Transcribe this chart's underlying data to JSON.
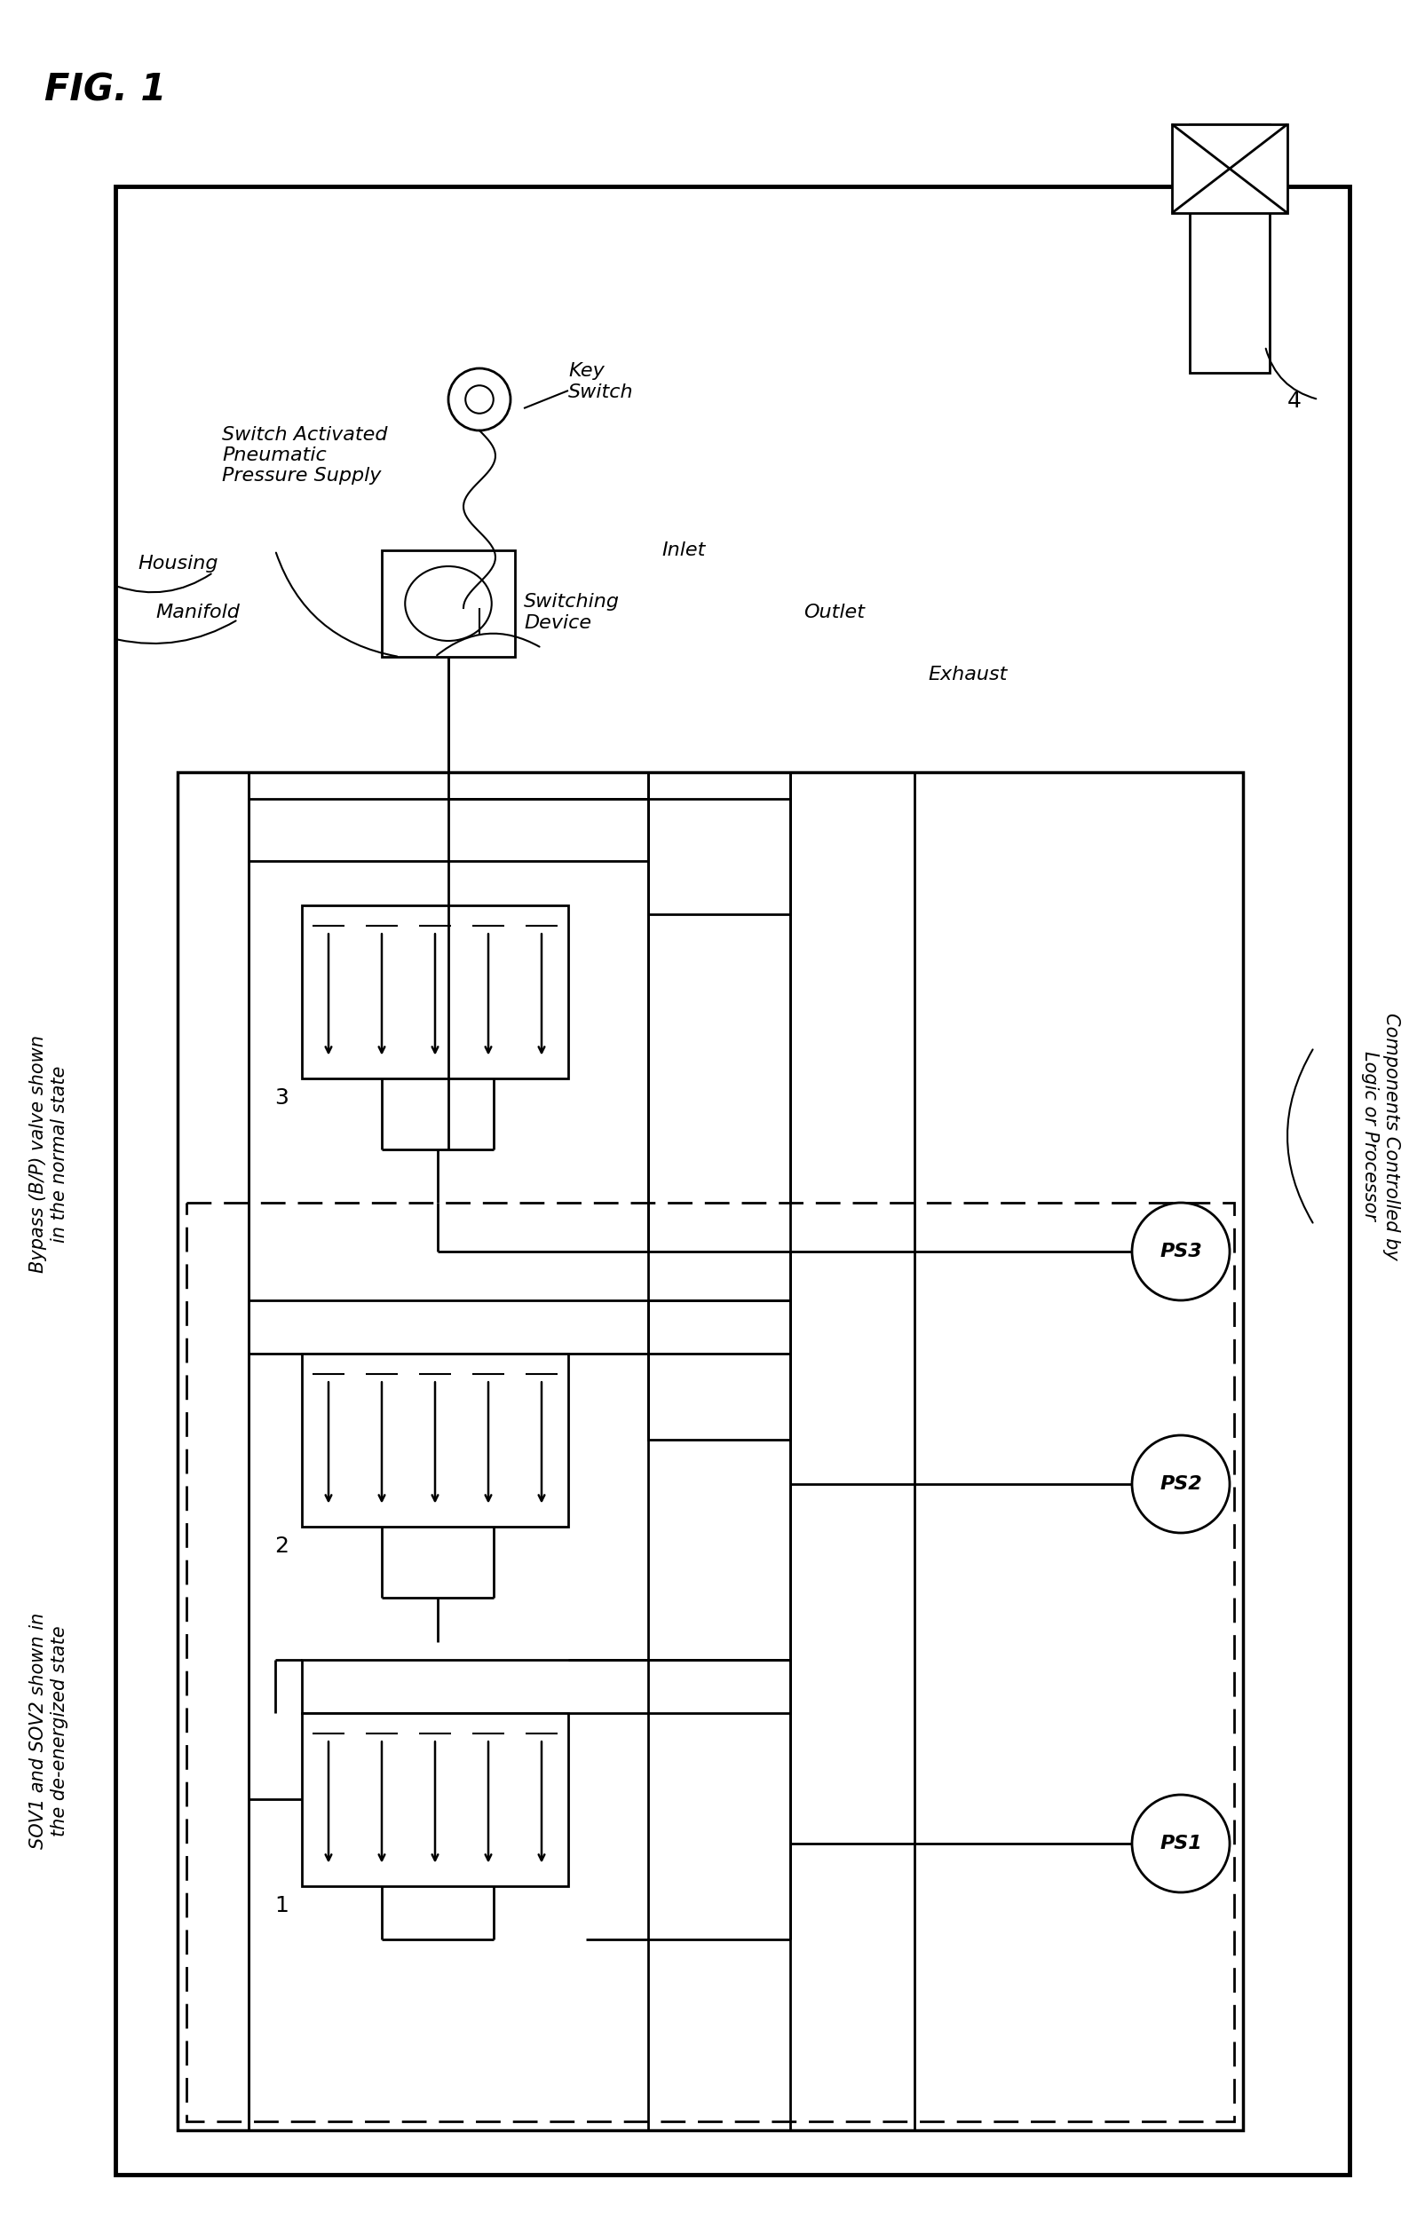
{
  "bg_color": "#ffffff",
  "fig_label": "FIG. 1",
  "label_housing": "Housing",
  "label_manifold": "Manifold",
  "label_switch": "Switch Activated\nPneumatic\nPressure Supply",
  "label_keyswitch": "Key\nSwitch",
  "label_swdevice": "Switching\nDevice",
  "label_inlet": "Inlet",
  "label_outlet": "Outlet",
  "label_exhaust": "Exhaust",
  "label_bypass": "Bypass (B/P) valve shown\nin the normal state",
  "label_sov": "SOV1 and SOV2 shown in\nthe de-energized state",
  "label_components": "Components Controlled by\nLogic or Processor",
  "label_4": "4",
  "label_3": "3",
  "label_2": "2",
  "label_1": "1",
  "label_ps3": "PS3",
  "label_ps2": "PS2",
  "label_ps1": "PS1"
}
